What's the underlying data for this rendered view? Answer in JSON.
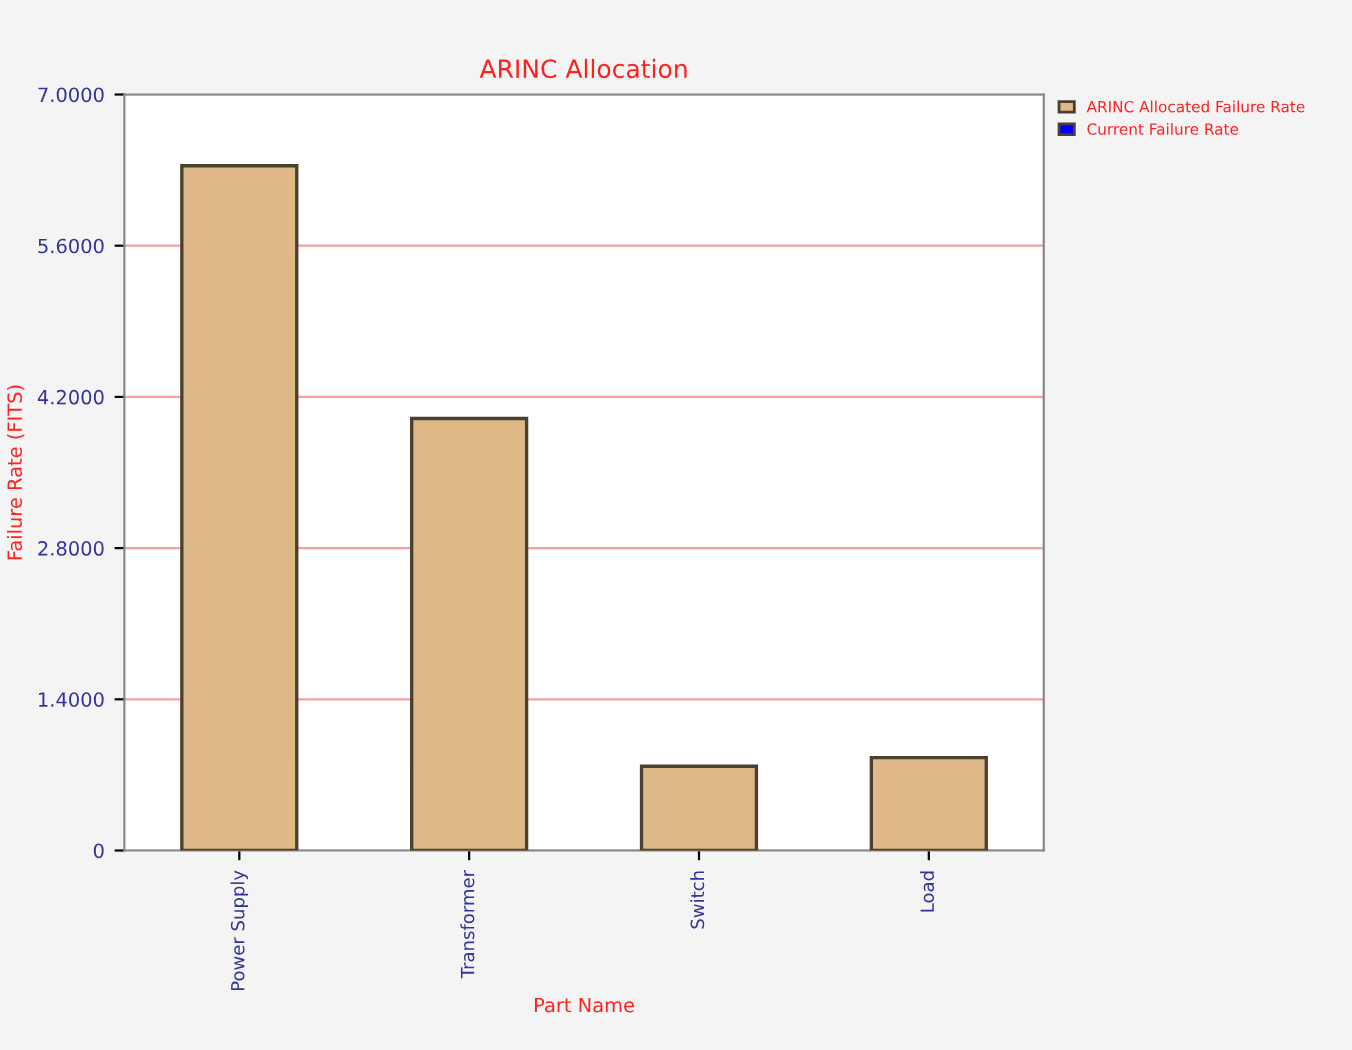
{
  "chart_data": {
    "type": "bar",
    "title": "ARINC Allocation",
    "xlabel": "Part Name",
    "ylabel": "Failure Rate (FITS)",
    "categories": [
      "Power Supply",
      "Transformer",
      "Switch",
      "Load"
    ],
    "series": [
      {
        "name": "ARINC Allocated Failure Rate",
        "color": "#deb887",
        "values": [
          6.34,
          4.0,
          0.78,
          0.86
        ]
      },
      {
        "name": "Current Failure Rate",
        "color": "#0000ff",
        "values": [
          null,
          null,
          null,
          null
        ]
      }
    ],
    "ylim": [
      0,
      7
    ],
    "yticks": [
      0,
      {
        "value": 1.4,
        "label": "1.4000"
      },
      {
        "value": 2.8,
        "label": "2.8000"
      },
      {
        "value": 4.2,
        "label": "4.2000"
      },
      {
        "value": 5.6,
        "label": "5.6000"
      },
      {
        "value": 7.0,
        "label": "7.0000"
      }
    ],
    "grid": "y",
    "legend": "top right"
  }
}
